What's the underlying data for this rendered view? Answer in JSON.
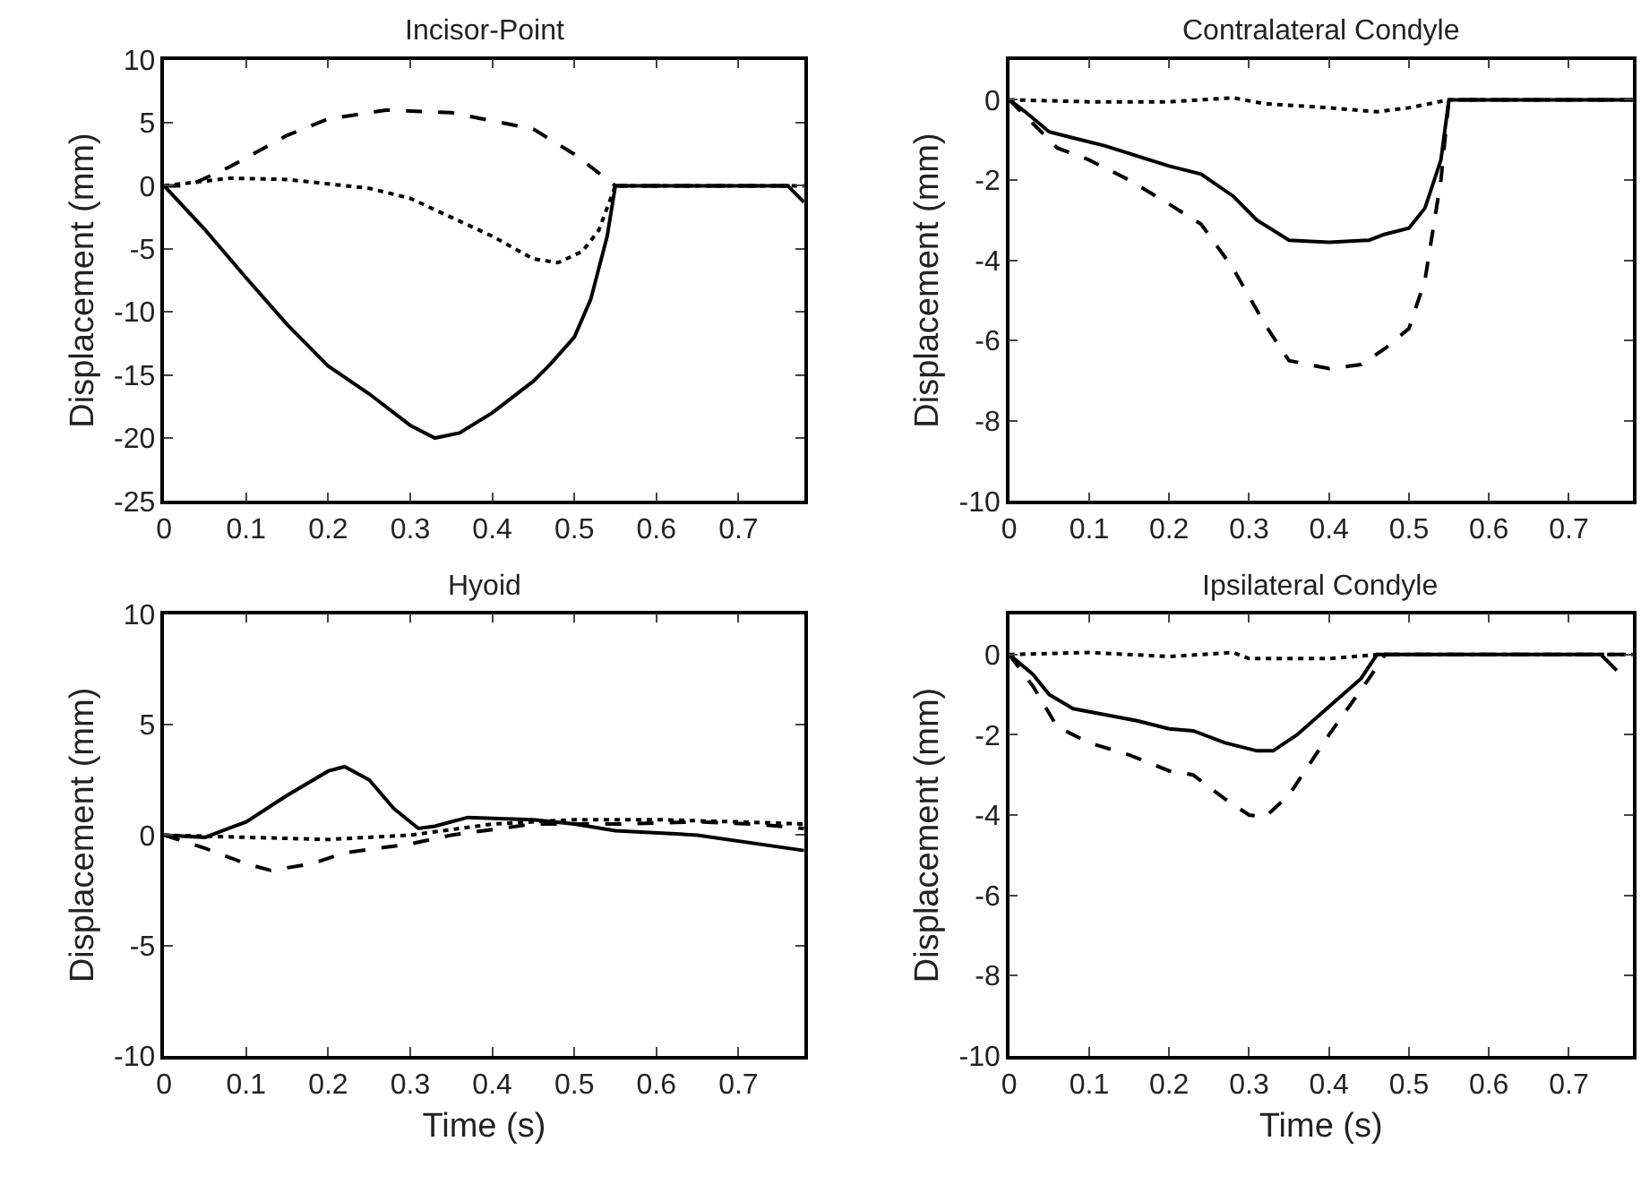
{
  "chart_data": [
    {
      "type": "line",
      "title": "Incisor-Point",
      "ylabel": "Displacement (mm)",
      "xlim": [
        0,
        0.78
      ],
      "xticks": [
        0,
        0.1,
        0.2,
        0.3,
        0.4,
        0.5,
        0.6,
        0.7
      ],
      "ylim": [
        -25,
        10
      ],
      "yticks": [
        -25,
        -20,
        -15,
        -10,
        -5,
        0,
        5,
        10
      ],
      "series": [
        {
          "color": "#000000",
          "line_style": "solid",
          "x": [
            0,
            0.05,
            0.1,
            0.15,
            0.2,
            0.25,
            0.3,
            0.33,
            0.36,
            0.4,
            0.45,
            0.47,
            0.5,
            0.52,
            0.54,
            0.55,
            0.76,
            0.78
          ],
          "values": [
            0,
            -3.5,
            -7.3,
            -11,
            -14.3,
            -16.5,
            -19,
            -20,
            -19.6,
            -18,
            -15.5,
            -14.2,
            -12,
            -9,
            -4,
            0,
            0,
            -1.3
          ]
        },
        {
          "color": "#000000",
          "line_style": "dashed",
          "x": [
            0,
            0.03,
            0.08,
            0.15,
            0.2,
            0.27,
            0.35,
            0.45,
            0.5,
            0.55,
            0.78
          ],
          "values": [
            0,
            0,
            1.5,
            4,
            5.3,
            6,
            5.8,
            4.5,
            2.5,
            0,
            0
          ]
        },
        {
          "color": "#000000",
          "line_style": "dotted",
          "x": [
            0,
            0.08,
            0.15,
            0.25,
            0.3,
            0.35,
            0.4,
            0.45,
            0.48,
            0.51,
            0.53,
            0.55,
            0.78
          ],
          "values": [
            0,
            0.6,
            0.5,
            -0.2,
            -1,
            -2.5,
            -4,
            -5.8,
            -6.1,
            -5.2,
            -3.5,
            0,
            0
          ]
        }
      ]
    },
    {
      "type": "line",
      "title": "Contralateral Condyle",
      "ylabel": "Displacement (mm)",
      "xlim": [
        0,
        0.78
      ],
      "xticks": [
        0,
        0.1,
        0.2,
        0.3,
        0.4,
        0.5,
        0.6,
        0.7
      ],
      "ylim": [
        -10,
        1
      ],
      "yticks": [
        -10,
        -8,
        -6,
        -4,
        -2,
        0
      ],
      "series": [
        {
          "color": "#000000",
          "line_style": "solid",
          "x": [
            0,
            0.02,
            0.05,
            0.08,
            0.12,
            0.16,
            0.2,
            0.24,
            0.28,
            0.31,
            0.35,
            0.4,
            0.45,
            0.47,
            0.5,
            0.52,
            0.54,
            0.55,
            0.78
          ],
          "values": [
            0,
            -0.3,
            -0.8,
            -0.95,
            -1.15,
            -1.4,
            -1.65,
            -1.85,
            -2.4,
            -3,
            -3.5,
            -3.55,
            -3.5,
            -3.35,
            -3.2,
            -2.7,
            -1.5,
            0,
            0
          ]
        },
        {
          "color": "#000000",
          "line_style": "dashed",
          "x": [
            0,
            0.03,
            0.06,
            0.1,
            0.15,
            0.2,
            0.24,
            0.28,
            0.32,
            0.35,
            0.4,
            0.44,
            0.47,
            0.5,
            0.52,
            0.54,
            0.55,
            0.78
          ],
          "values": [
            0,
            -0.6,
            -1.2,
            -1.5,
            -2,
            -2.6,
            -3.1,
            -4.2,
            -5.6,
            -6.5,
            -6.7,
            -6.6,
            -6.2,
            -5.7,
            -4.5,
            -2,
            0,
            0
          ]
        },
        {
          "color": "#000000",
          "line_style": "dotted",
          "x": [
            0,
            0.1,
            0.2,
            0.28,
            0.32,
            0.4,
            0.46,
            0.5,
            0.55,
            0.78
          ],
          "values": [
            0,
            -0.05,
            -0.05,
            0.05,
            -0.1,
            -0.2,
            -0.3,
            -0.2,
            0,
            0
          ]
        }
      ]
    },
    {
      "type": "line",
      "title": "Hyoid",
      "xlabel": "Time (s)",
      "ylabel": "Displacement (mm)",
      "xlim": [
        0,
        0.78
      ],
      "xticks": [
        0,
        0.1,
        0.2,
        0.3,
        0.4,
        0.5,
        0.6,
        0.7
      ],
      "ylim": [
        -10,
        10
      ],
      "yticks": [
        -10,
        -5,
        0,
        5,
        10
      ],
      "series": [
        {
          "color": "#000000",
          "line_style": "solid",
          "x": [
            0,
            0.05,
            0.1,
            0.15,
            0.2,
            0.22,
            0.25,
            0.28,
            0.31,
            0.33,
            0.37,
            0.45,
            0.5,
            0.55,
            0.65,
            0.78
          ],
          "values": [
            0,
            -0.1,
            0.6,
            1.8,
            2.9,
            3.1,
            2.5,
            1.2,
            0.3,
            0.4,
            0.8,
            0.7,
            0.5,
            0.2,
            0,
            -0.7
          ]
        },
        {
          "color": "#000000",
          "line_style": "dashed",
          "x": [
            0,
            0.05,
            0.1,
            0.13,
            0.18,
            0.22,
            0.3,
            0.35,
            0.45,
            0.55,
            0.65,
            0.72,
            0.78
          ],
          "values": [
            0,
            -0.6,
            -1.3,
            -1.6,
            -1.3,
            -0.8,
            -0.4,
            0,
            0.5,
            0.5,
            0.6,
            0.5,
            0.3
          ]
        },
        {
          "color": "#000000",
          "line_style": "dotted",
          "x": [
            0,
            0.1,
            0.2,
            0.3,
            0.4,
            0.5,
            0.6,
            0.7,
            0.78
          ],
          "values": [
            0,
            -0.1,
            -0.2,
            0,
            0.5,
            0.7,
            0.7,
            0.6,
            0.5
          ]
        }
      ]
    },
    {
      "type": "line",
      "title": "Ipsilateral Condyle",
      "xlabel": "Time (s)",
      "ylabel": "Displacement (mm)",
      "xlim": [
        0,
        0.78
      ],
      "xticks": [
        0,
        0.1,
        0.2,
        0.3,
        0.4,
        0.5,
        0.6,
        0.7
      ],
      "ylim": [
        -10,
        1
      ],
      "yticks": [
        -10,
        -8,
        -6,
        -4,
        -2,
        0
      ],
      "series": [
        {
          "color": "#000000",
          "line_style": "solid",
          "x": [
            0,
            0.03,
            0.05,
            0.08,
            0.12,
            0.16,
            0.2,
            0.23,
            0.27,
            0.31,
            0.33,
            0.36,
            0.4,
            0.44,
            0.46,
            0.74,
            0.76
          ],
          "values": [
            0,
            -0.5,
            -1,
            -1.35,
            -1.5,
            -1.65,
            -1.85,
            -1.9,
            -2.2,
            -2.4,
            -2.4,
            -2,
            -1.3,
            -0.6,
            0,
            0,
            -0.4
          ]
        },
        {
          "color": "#000000",
          "line_style": "dashed",
          "x": [
            0,
            0.03,
            0.06,
            0.1,
            0.15,
            0.2,
            0.23,
            0.27,
            0.3,
            0.32,
            0.35,
            0.4,
            0.45,
            0.47,
            0.78
          ],
          "values": [
            0,
            -0.8,
            -1.8,
            -2.2,
            -2.5,
            -2.9,
            -3,
            -3.6,
            -4,
            -4.05,
            -3.5,
            -2,
            -0.6,
            0,
            0
          ]
        },
        {
          "color": "#000000",
          "line_style": "dotted",
          "x": [
            0,
            0.1,
            0.2,
            0.28,
            0.3,
            0.4,
            0.46,
            0.78
          ],
          "values": [
            0,
            0.05,
            -0.05,
            0.05,
            -0.1,
            -0.1,
            0,
            0
          ]
        }
      ]
    }
  ]
}
